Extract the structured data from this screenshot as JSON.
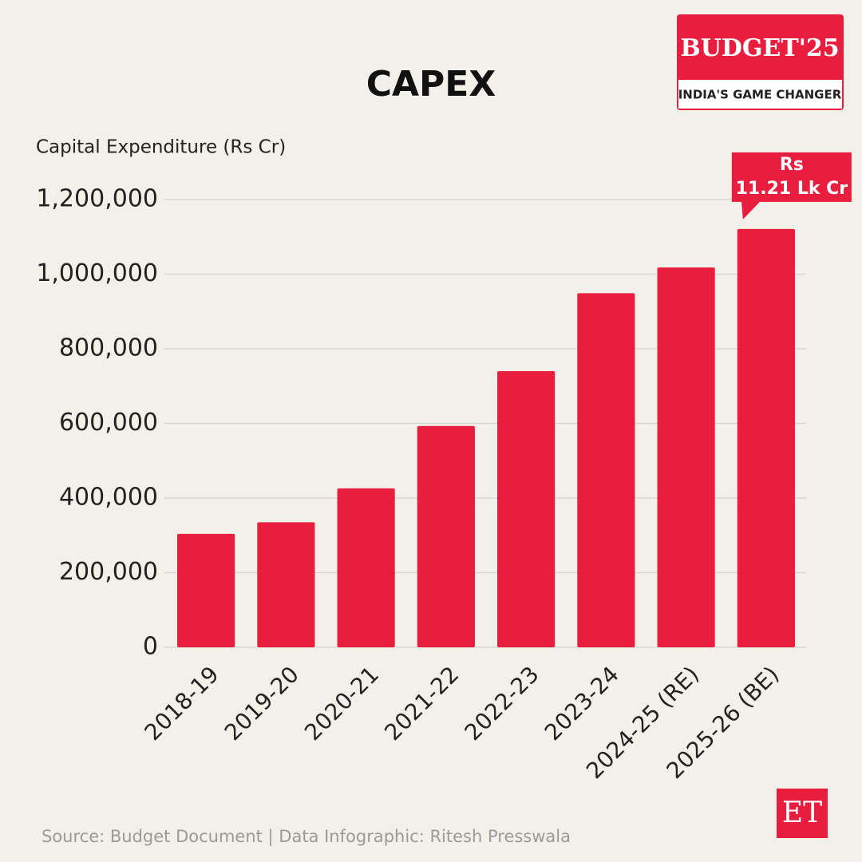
{
  "chart_data": {
    "type": "bar",
    "title": "CAPEX",
    "y_label": "Capital Expenditure (Rs Cr)",
    "categories": [
      "2018-19",
      "2019-20",
      "2020-21",
      "2021-22",
      "2022-23",
      "2023-24",
      "2024-25 (RE)",
      "2025-26 (BE)"
    ],
    "values": [
      304000,
      335000,
      426000,
      593000,
      740000,
      949000,
      1018000,
      1121000
    ],
    "value_labels": [
      null,
      null,
      null,
      null,
      null,
      null,
      null,
      "Rs\n11.21 Lk Cr"
    ],
    "color": "#e91e3f",
    "ylim": [
      0,
      1200000
    ],
    "yticks": [
      0,
      {
        "value": 200000,
        "label": "200,000"
      },
      {
        "value": 400000,
        "label": "400,000"
      },
      {
        "value": 600000,
        "label": "600,000"
      },
      {
        "value": 800000,
        "label": "800,000"
      },
      {
        "value": 1000000,
        "label": "1,000,000"
      },
      {
        "value": 1200000,
        "label": "1,200,000"
      }
    ],
    "grid": true,
    "source": "Source: Budget Document | Data Infographic: Ritesh Presswala"
  },
  "branding": {
    "badge_title": "BUDGET'25",
    "badge_subtitle": "INDIA'S GAME CHANGER",
    "logo": "ET"
  }
}
